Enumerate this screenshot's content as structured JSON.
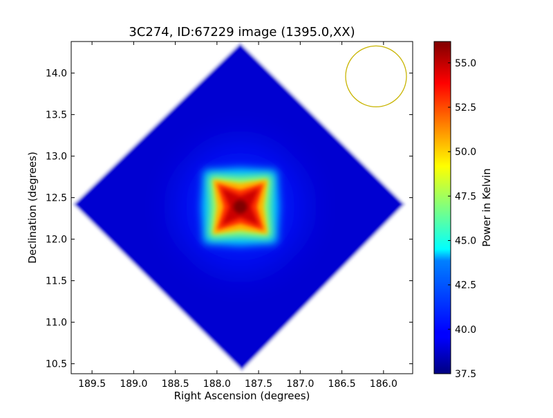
{
  "chart_data": {
    "type": "heatmap",
    "title": "3C274, ID:67229 image (1395.0,XX)",
    "xlabel": "Right Ascension (degrees)",
    "ylabel": "Declination (degrees)",
    "xlim": [
      189.75,
      185.65
    ],
    "ylim": [
      10.38,
      14.38
    ],
    "x_inverted": true,
    "x_ticks": [
      189.5,
      189.0,
      188.5,
      188.0,
      187.5,
      187.0,
      186.5,
      186.0
    ],
    "x_tick_labels": [
      "189.5",
      "189.0",
      "188.5",
      "188.0",
      "187.5",
      "187.0",
      "186.5",
      "186.0"
    ],
    "y_ticks": [
      10.5,
      11.0,
      11.5,
      12.0,
      12.5,
      13.0,
      13.5,
      14.0
    ],
    "y_tick_labels": [
      "10.5",
      "11.0",
      "11.5",
      "12.0",
      "12.5",
      "13.0",
      "13.5",
      "14.0"
    ],
    "grid": false,
    "colormap": "jet",
    "colorbar": {
      "label": "Power in Kelvin",
      "min": 37.5,
      "max": 56.2,
      "ticks": [
        37.5,
        40.0,
        42.5,
        45.0,
        47.5,
        50.0,
        52.5,
        55.0
      ],
      "tick_labels": [
        "37.5",
        "40.0",
        "42.5",
        "45.0",
        "47.5",
        "50.0",
        "52.5",
        "55.0"
      ]
    },
    "field_of_view": {
      "shape": "square rotated 45 degrees",
      "center_ra": 187.72,
      "center_dec": 12.39,
      "vertices_ra_dec": [
        [
          187.72,
          14.36
        ],
        [
          185.75,
          12.42
        ],
        [
          187.7,
          10.42
        ],
        [
          189.72,
          12.42
        ]
      ]
    },
    "background_level": 39.0,
    "source": {
      "peak_ra": 187.72,
      "peak_dec": 12.39,
      "peak_value": 56.2,
      "shape": "four-pointed star"
    },
    "beam_circle": {
      "center_ra": 186.09,
      "center_dec": 13.96,
      "color": "#c8b400"
    }
  }
}
